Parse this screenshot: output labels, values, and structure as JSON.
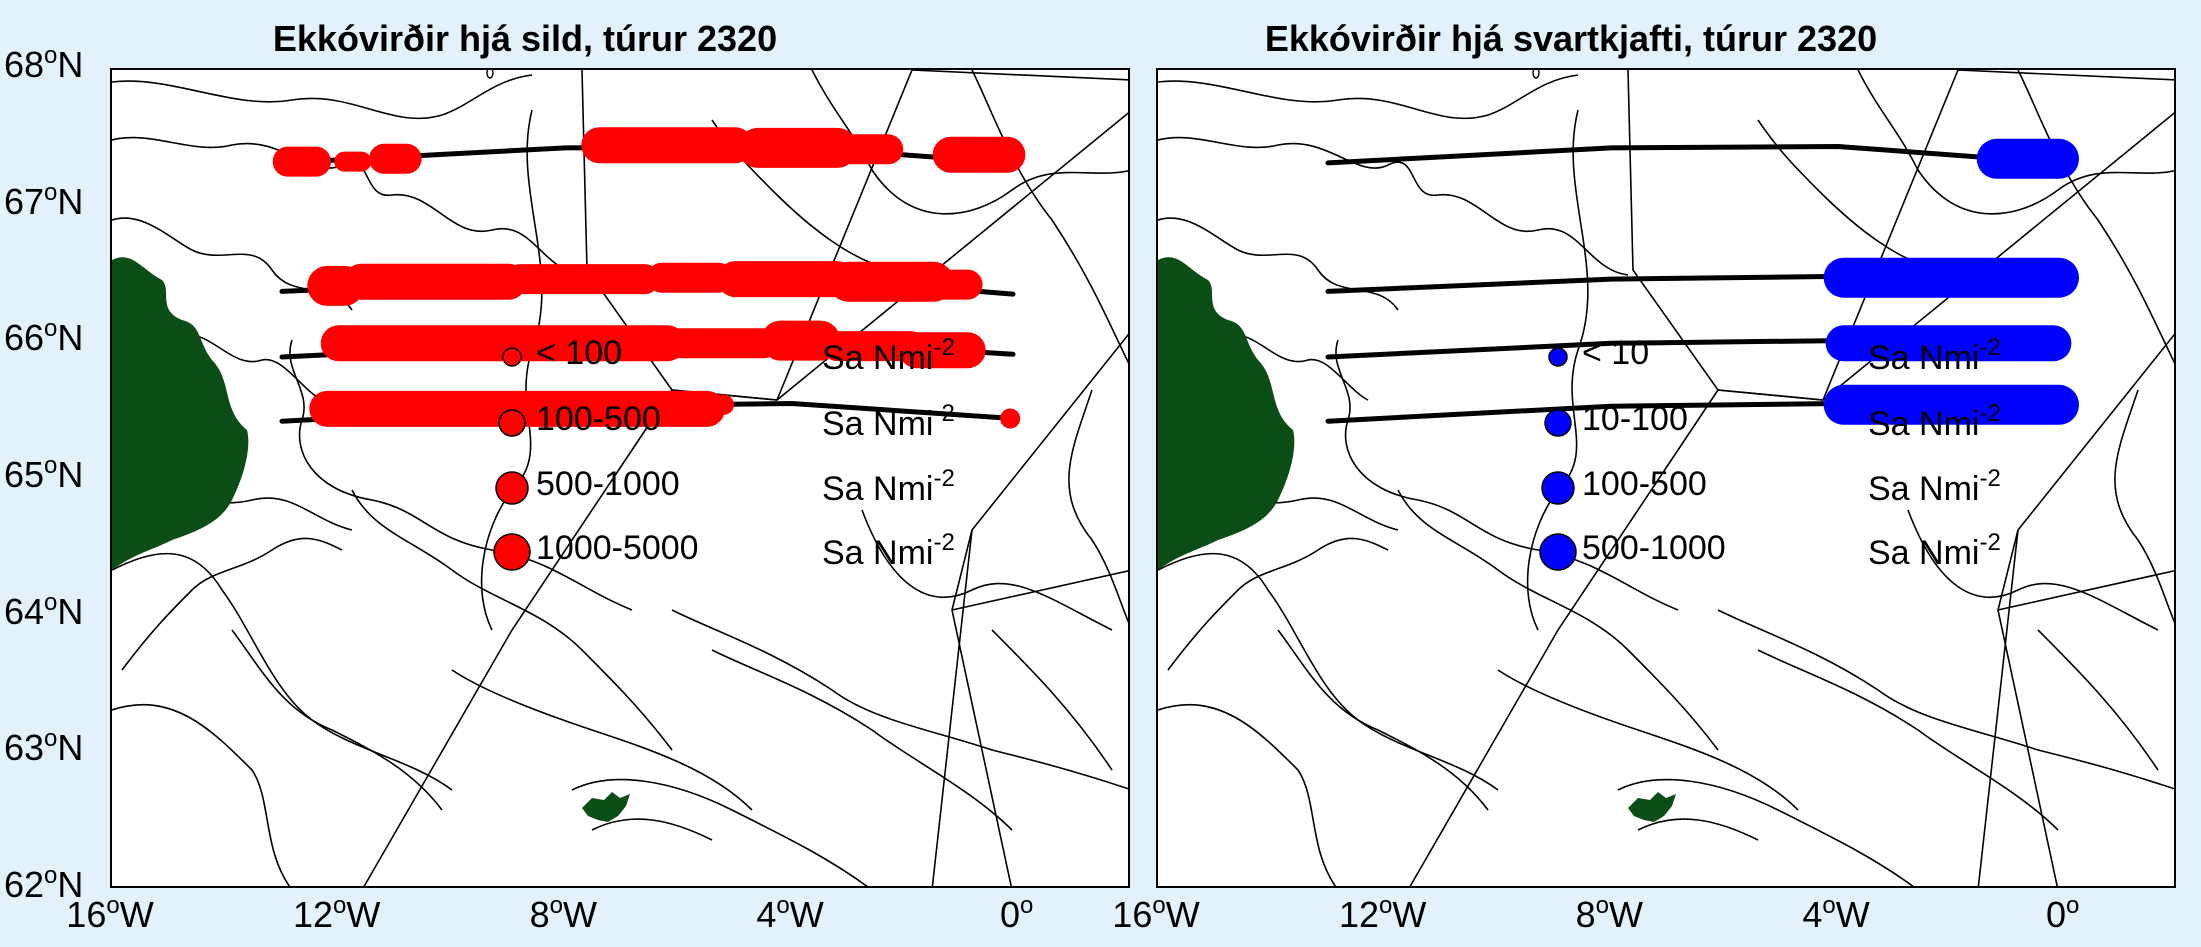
{
  "map": {
    "lat_range": [
      62,
      68
    ],
    "lon_range": [
      -16,
      2
    ],
    "land_color": "#0a4d15",
    "track_color": "#000000"
  },
  "axes": {
    "y_ticks": [
      {
        "value": 68,
        "deg": "68",
        "sup": "o",
        "hem": "N"
      },
      {
        "value": 67,
        "deg": "67",
        "sup": "o",
        "hem": "N"
      },
      {
        "value": 66,
        "deg": "66",
        "sup": "o",
        "hem": "N"
      },
      {
        "value": 65,
        "deg": "65",
        "sup": "o",
        "hem": "N"
      },
      {
        "value": 64,
        "deg": "64",
        "sup": "o",
        "hem": "N"
      },
      {
        "value": 63,
        "deg": "63",
        "sup": "o",
        "hem": "N"
      },
      {
        "value": 62,
        "deg": "62",
        "sup": "o",
        "hem": "N"
      }
    ],
    "x_ticks": [
      {
        "value": -16,
        "deg": "16",
        "sup": "o",
        "hem": "W"
      },
      {
        "value": -12,
        "deg": "12",
        "sup": "o",
        "hem": "W"
      },
      {
        "value": -8,
        "deg": "8",
        "sup": "o",
        "hem": "W"
      },
      {
        "value": -4,
        "deg": "4",
        "sup": "o",
        "hem": "W"
      },
      {
        "value": 0,
        "deg": "0",
        "sup": "o",
        "hem": ""
      }
    ]
  },
  "panels": [
    {
      "title": "Ekkóvirðir hjá sild, túrur 2320",
      "marker_color": "#ff0000",
      "legend": [
        {
          "label": "< 100",
          "unit": "Sa Nmi",
          "unit_sup": "-2",
          "size": 1
        },
        {
          "label": "100-500",
          "unit": "Sa Nmi",
          "unit_sup": "-2",
          "size": 2
        },
        {
          "label": "500-1000",
          "unit": "Sa Nmi",
          "unit_sup": "-2",
          "size": 3
        },
        {
          "label": "1000-5000",
          "unit": "Sa Nmi",
          "unit_sup": "-2",
          "size": 4
        }
      ],
      "segments": [
        {
          "lat": 67.33,
          "lon_start": -12.9,
          "lon_end": -12.4,
          "size": 2
        },
        {
          "lat": 67.33,
          "lon_start": -11.9,
          "lon_end": -11.6,
          "size": 1
        },
        {
          "lat": 67.35,
          "lon_start": -11.2,
          "lon_end": -10.8,
          "size": 2
        },
        {
          "lat": 67.45,
          "lon_start": -7.4,
          "lon_end": -5.0,
          "size": 3
        },
        {
          "lat": 67.43,
          "lon_start": -4.6,
          "lon_end": -3.2,
          "size": 4
        },
        {
          "lat": 67.42,
          "lon_start": -3.1,
          "lon_end": -2.3,
          "size": 2
        },
        {
          "lat": 67.38,
          "lon_start": -1.2,
          "lon_end": -0.2,
          "size": 3
        },
        {
          "lat": 66.42,
          "lon_start": -12.2,
          "lon_end": -11.9,
          "size": 4
        },
        {
          "lat": 66.45,
          "lon_start": -11.6,
          "lon_end": -9.0,
          "size": 3
        },
        {
          "lat": 66.47,
          "lon_start": -8.8,
          "lon_end": -6.6,
          "size": 2
        },
        {
          "lat": 66.48,
          "lon_start": -6.3,
          "lon_end": -5.3,
          "size": 2
        },
        {
          "lat": 66.47,
          "lon_start": -5.0,
          "lon_end": -3.2,
          "size": 3
        },
        {
          "lat": 66.45,
          "lon_start": -3.0,
          "lon_end": -1.5,
          "size": 4
        },
        {
          "lat": 66.43,
          "lon_start": -1.4,
          "lon_end": -0.9,
          "size": 2
        },
        {
          "lat": 66.0,
          "lon_start": -12.0,
          "lon_end": -6.2,
          "size": 3
        },
        {
          "lat": 66.0,
          "lon_start": -6.0,
          "lon_end": -4.5,
          "size": 2
        },
        {
          "lat": 66.02,
          "lon_start": -4.2,
          "lon_end": -3.5,
          "size": 4
        },
        {
          "lat": 65.98,
          "lon_start": -3.2,
          "lon_end": -1.9,
          "size": 2
        },
        {
          "lat": 65.95,
          "lon_start": -1.8,
          "lon_end": -0.9,
          "size": 3
        },
        {
          "lat": 65.52,
          "lon_start": -12.2,
          "lon_end": -5.5,
          "size": 3
        },
        {
          "lat": 65.55,
          "lon_start": -5.6,
          "lon_end": -5.2,
          "size": 1
        },
        {
          "lat": 65.45,
          "lon_start": -0.15,
          "lon_end": -0.15,
          "size": 1
        }
      ]
    },
    {
      "title": "Ekkóvirðir hjá svartkjafti, túrur 2320",
      "marker_color": "#0000ff",
      "legend": [
        {
          "label": "< 10",
          "unit": "Sa Nmi",
          "unit_sup": "-2",
          "size": 1
        },
        {
          "label": "10-100",
          "unit": "Sa Nmi",
          "unit_sup": "-2",
          "size": 2
        },
        {
          "label": "100-500",
          "unit": "Sa Nmi",
          "unit_sup": "-2",
          "size": 3
        },
        {
          "label": "500-1000",
          "unit": "Sa Nmi",
          "unit_sup": "-2",
          "size": 4
        }
      ],
      "segments": [
        {
          "lat": 67.35,
          "lon_start": -1.2,
          "lon_end": -0.1,
          "size": 4
        },
        {
          "lat": 66.48,
          "lon_start": -3.9,
          "lon_end": -0.1,
          "size": 4
        },
        {
          "lat": 66.0,
          "lon_start": -3.9,
          "lon_end": -0.2,
          "size": 3
        },
        {
          "lat": 65.55,
          "lon_start": -3.9,
          "lon_end": -0.1,
          "size": 4
        }
      ]
    }
  ]
}
